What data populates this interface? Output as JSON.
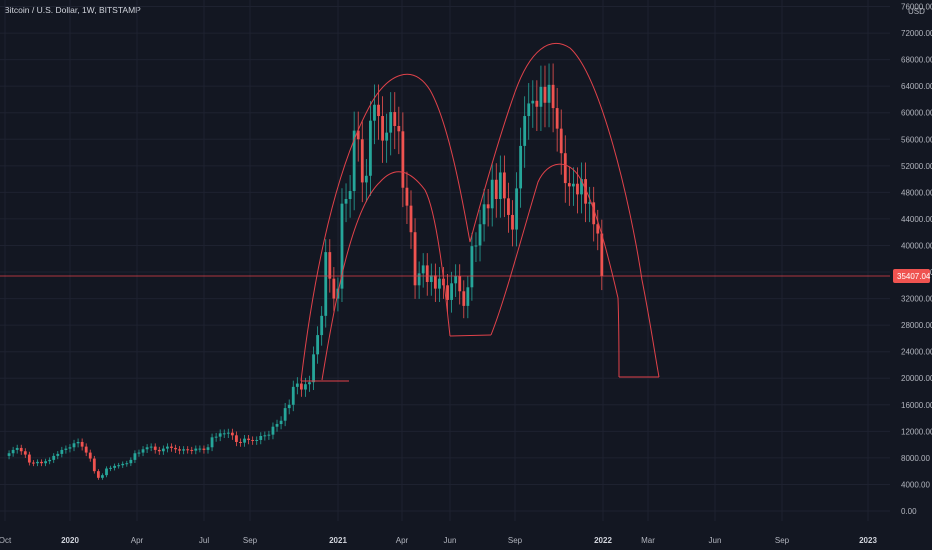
{
  "chart_data": {
    "type": "candlestick",
    "title": "Bitcoin / U.S. Dollar, 1W, BITSTAMP",
    "currency": "USD",
    "last_price": "35407.04",
    "y_ticks": [
      "76000.00",
      "72000.00",
      "68000.00",
      "64000.00",
      "60000.00",
      "56000.00",
      "52000.00",
      "48000.00",
      "44000.00",
      "40000.00",
      "36000.00",
      "32000.00",
      "28000.00",
      "24000.00",
      "20000.00",
      "16000.00",
      "12000.00",
      "8000.00",
      "4000.00",
      "0.00"
    ],
    "x_ticks": [
      {
        "label": "Oct",
        "bold": false
      },
      {
        "label": "2020",
        "bold": true
      },
      {
        "label": "Apr",
        "bold": false
      },
      {
        "label": "Jul",
        "bold": false
      },
      {
        "label": "Sep",
        "bold": false
      },
      {
        "label": "2021",
        "bold": true
      },
      {
        "label": "Apr",
        "bold": false
      },
      {
        "label": "Jun",
        "bold": false
      },
      {
        "label": "Sep",
        "bold": false
      },
      {
        "label": "2022",
        "bold": true
      },
      {
        "label": "Mar",
        "bold": false
      },
      {
        "label": "Jun",
        "bold": false
      },
      {
        "label": "Sep",
        "bold": false
      },
      {
        "label": "2023",
        "bold": true
      }
    ],
    "ylim": [
      0,
      76000
    ],
    "grid": true,
    "colors": {
      "up": "#26a69a",
      "down": "#ef5350",
      "background": "#131722",
      "grid": "#1e2230",
      "annotation": "#e0424a"
    },
    "closes": [
      8300,
      8700,
      9200,
      9500,
      9000,
      8500,
      7300,
      7200,
      7400,
      7200,
      7500,
      7700,
      8300,
      8600,
      9200,
      9400,
      9600,
      10200,
      10400,
      9700,
      8800,
      7900,
      6000,
      5000,
      5400,
      6400,
      6500,
      6800,
      6900,
      7100,
      7200,
      7700,
      8700,
      8800,
      9300,
      9600,
      9700,
      9200,
      9000,
      9400,
      9700,
      9500,
      9300,
      9100,
      9300,
      9200,
      9100,
      9400,
      9400,
      9200,
      9600,
      11100,
      11200,
      11700,
      11700,
      11800,
      11400,
      10400,
      10300,
      10900,
      10700,
      10600,
      10700,
      11300,
      11400,
      11500,
      12700,
      13100,
      13600,
      15500,
      16000,
      18700,
      19200,
      18300,
      19100,
      19400,
      23600,
      26500,
      29400,
      39000,
      35000,
      32000,
      33500,
      46300,
      47000,
      48200,
      57300,
      56000,
      49500,
      50500,
      58800,
      61200,
      59500,
      55800,
      57000,
      60100,
      58000,
      57200,
      48700,
      46000,
      42000,
      34000,
      35800,
      37000,
      34500,
      35500,
      33500,
      35000,
      34000,
      31800,
      34300,
      35400,
      33100,
      30900,
      33700,
      39900,
      40000,
      43200,
      46200,
      45600,
      49900,
      47000,
      51000,
      47100,
      44600,
      42400,
      48600,
      55000,
      59500,
      61400,
      61800,
      60900,
      63900,
      61500,
      64200,
      60700,
      57600,
      53900,
      49400,
      48900,
      49300,
      47700,
      50000,
      46300,
      46500,
      43200,
      41800,
      35407
    ]
  }
}
